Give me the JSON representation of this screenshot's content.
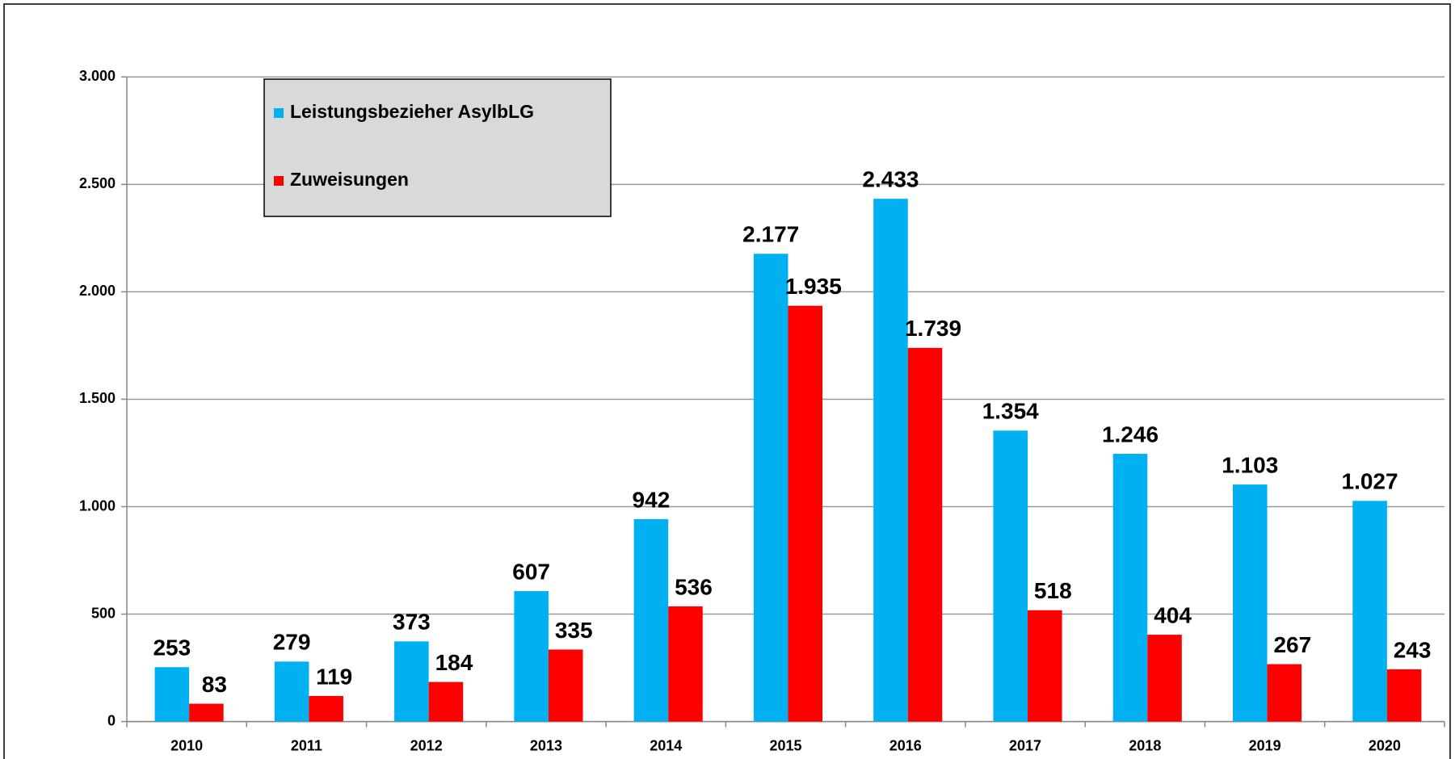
{
  "chart_data": {
    "type": "bar",
    "categories": [
      "2010",
      "2011",
      "2012",
      "2013",
      "2014",
      "2015",
      "2016",
      "2017",
      "2018",
      "2019",
      "2020"
    ],
    "series": [
      {
        "name": "Leistungsbezieher AsylbLG",
        "color": "#00b0f0",
        "values": [
          253,
          279,
          373,
          607,
          942,
          2177,
          2433,
          1354,
          1246,
          1103,
          1027
        ],
        "value_labels": [
          "253",
          "279",
          "373",
          "607",
          "942",
          "2.177",
          "2.433",
          "1.354",
          "1.246",
          "1.103",
          "1.027"
        ]
      },
      {
        "name": "Zuweisungen",
        "color": "#ff0000",
        "values": [
          83,
          119,
          184,
          335,
          536,
          1935,
          1739,
          518,
          404,
          267,
          243
        ],
        "value_labels": [
          "83",
          "119",
          "184",
          "335",
          "536",
          "1.935",
          "1.739",
          "518",
          "404",
          "267",
          "243"
        ]
      }
    ],
    "ylim": [
      0,
      3000
    ],
    "yticks": [
      0,
      500,
      {
        "value": 1000,
        "label": "1.000"
      },
      {
        "value": 1500,
        "label": "1.500"
      },
      {
        "value": 2000,
        "label": "2.000"
      },
      {
        "value": 2500,
        "label": "2.500"
      },
      {
        "value": 3000,
        "label": "3.000"
      }
    ],
    "grid": true
  }
}
